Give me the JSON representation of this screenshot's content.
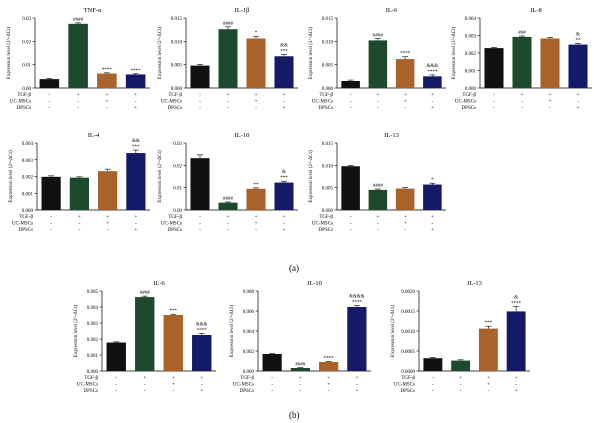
{
  "figure": {
    "panel_a_label": "(a)",
    "panel_b_label": "(b)"
  },
  "colors": {
    "black": "#111111",
    "green": "#1d4a2c",
    "orange": "#a9622a",
    "navy": "#141a66"
  },
  "row_labels": [
    "TGF-β",
    "UC-MSCs",
    "DPSCs"
  ],
  "ylabel": "Expression level (2^-ΔCt)",
  "chart_data": [
    {
      "id": "a1",
      "title": "TNF-α",
      "type": "bar",
      "ylim": [
        0,
        0.03
      ],
      "ticks": [
        "0.00",
        "0.01",
        "0.02",
        "0.03"
      ],
      "values": [
        0.0038,
        0.0275,
        0.0062,
        0.0058
      ],
      "errors": [
        0.0003,
        0.0004,
        0.0003,
        0.0003
      ],
      "sig": [
        [],
        [
          "####"
        ],
        [
          "****"
        ],
        [
          "****"
        ]
      ],
      "signs": [
        [
          "-",
          "+",
          "+",
          "+"
        ],
        [
          "-",
          "-",
          "+",
          "-"
        ],
        [
          "-",
          "-",
          "-",
          "+"
        ]
      ]
    },
    {
      "id": "a2",
      "title": "IL-1β",
      "type": "bar",
      "ylim": [
        0,
        0.015
      ],
      "ticks": [
        "0.000",
        "0.005",
        "0.010",
        "0.015"
      ],
      "values": [
        0.0048,
        0.0126,
        0.0106,
        0.0068
      ],
      "errors": [
        0.0002,
        0.0005,
        0.0005,
        0.0004
      ],
      "sig": [
        [],
        [
          "####"
        ],
        [
          "*"
        ],
        [
          "&&",
          "***"
        ]
      ],
      "signs": [
        [
          "-",
          "+",
          "+",
          "+"
        ],
        [
          "-",
          "-",
          "+",
          "-"
        ],
        [
          "-",
          "-",
          "-",
          "+"
        ]
      ]
    },
    {
      "id": "a3",
      "title": "IL-6",
      "type": "bar",
      "ylim": [
        0,
        0.015
      ],
      "ticks": [
        "0.000",
        "0.005",
        "0.010",
        "0.015"
      ],
      "values": [
        0.0015,
        0.0102,
        0.0062,
        0.0025
      ],
      "errors": [
        0.0002,
        0.0004,
        0.0005,
        0.0003
      ],
      "sig": [
        [],
        [
          "####"
        ],
        [
          "****"
        ],
        [
          "&&&",
          "****"
        ]
      ],
      "signs": [
        [
          "-",
          "+",
          "+",
          "+"
        ],
        [
          "-",
          "-",
          "+",
          "-"
        ],
        [
          "-",
          "-",
          "-",
          "+"
        ]
      ]
    },
    {
      "id": "a4",
      "title": "IL-8",
      "type": "bar",
      "ylim": [
        0,
        0.004
      ],
      "ticks": [
        "0.000",
        "0.001",
        "0.002",
        "0.003",
        "0.004"
      ],
      "values": [
        0.00228,
        0.00292,
        0.00283,
        0.00248
      ],
      "errors": [
        4e-05,
        5e-05,
        5e-05,
        6e-05
      ],
      "sig": [
        [],
        [
          "###"
        ],
        [],
        [
          "&",
          "**"
        ]
      ],
      "signs": [
        [
          "-",
          "+",
          "+",
          "+"
        ],
        [
          "-",
          "-",
          "+",
          "-"
        ],
        [
          "-",
          "-",
          "-",
          "+"
        ]
      ]
    },
    {
      "id": "a5",
      "title": "IL-4",
      "type": "bar",
      "ylim": [
        0,
        0.004
      ],
      "ticks": [
        "0.000",
        "0.001",
        "0.002",
        "0.003",
        "0.004"
      ],
      "values": [
        0.00198,
        0.00193,
        0.00232,
        0.0034
      ],
      "errors": [
        6e-05,
        5e-05,
        0.00012,
        0.00018
      ],
      "sig": [
        [],
        [],
        [],
        [
          "&&",
          "***"
        ]
      ],
      "signs": [
        [
          "-",
          "+",
          "+",
          "+"
        ],
        [
          "-",
          "-",
          "+",
          "-"
        ],
        [
          "-",
          "-",
          "-",
          "+"
        ]
      ]
    },
    {
      "id": "a6",
      "title": "IL-10",
      "type": "bar",
      "ylim": [
        0,
        0.03
      ],
      "ticks": [
        "0.00",
        "0.01",
        "0.02",
        "0.03"
      ],
      "values": [
        0.0232,
        0.0033,
        0.0095,
        0.0123
      ],
      "errors": [
        0.0015,
        0.0003,
        0.0004,
        0.0006
      ],
      "sig": [
        [],
        [
          "####"
        ],
        [
          "**"
        ],
        [
          "&",
          "***"
        ]
      ],
      "signs": [
        [
          "-",
          "+",
          "+",
          "+"
        ],
        [
          "-",
          "-",
          "+",
          "-"
        ],
        [
          "-",
          "-",
          "-",
          "+"
        ]
      ]
    },
    {
      "id": "a7",
      "title": "IL-13",
      "type": "bar",
      "ylim": [
        0,
        0.015
      ],
      "ticks": [
        "0.000",
        "0.005",
        "0.010",
        "0.015"
      ],
      "values": [
        0.0098,
        0.0045,
        0.0048,
        0.0057
      ],
      "errors": [
        0.0002,
        0.0002,
        0.0002,
        0.0003
      ],
      "sig": [
        [],
        [
          "####"
        ],
        [],
        [
          "*"
        ]
      ],
      "signs": [
        [
          "-",
          "+",
          "+",
          "+"
        ],
        [
          "-",
          "-",
          "+",
          "-"
        ],
        [
          "-",
          "-",
          "-",
          "+"
        ]
      ]
    },
    {
      "id": "b1",
      "title": "IL-6",
      "type": "bar",
      "ylim": [
        0,
        0.005
      ],
      "ticks": [
        "0.000",
        "0.001",
        "0.002",
        "0.003",
        "0.004",
        "0.005"
      ],
      "values": [
        0.00178,
        0.00462,
        0.0035,
        0.00225
      ],
      "errors": [
        4e-05,
        6e-05,
        5e-05,
        0.0001
      ],
      "sig": [
        [],
        [
          "####"
        ],
        [
          "***"
        ],
        [
          "&&&",
          "****"
        ]
      ],
      "signs": [
        [
          "-",
          "+",
          "+",
          "+"
        ],
        [
          "-",
          "-",
          "+",
          "-"
        ],
        [
          "-",
          "-",
          "-",
          "+"
        ]
      ]
    },
    {
      "id": "b2",
      "title": "IL-10",
      "type": "bar",
      "ylim": [
        0,
        0.008
      ],
      "ticks": [
        "0.000",
        "0.002",
        "0.004",
        "0.006",
        "0.008"
      ],
      "values": [
        0.0017,
        0.0003,
        0.0009,
        0.0064
      ],
      "errors": [
        4e-05,
        3e-05,
        5e-05,
        0.00015
      ],
      "sig": [
        [],
        [
          "####"
        ],
        [
          "****"
        ],
        [
          "&&&&",
          "****"
        ]
      ],
      "signs": [
        [
          "-",
          "+",
          "+",
          "+"
        ],
        [
          "-",
          "-",
          "+",
          "-"
        ],
        [
          "-",
          "-",
          "-",
          "+"
        ]
      ]
    },
    {
      "id": "b3",
      "title": "IL-13",
      "type": "bar",
      "ylim": [
        0,
        0.002
      ],
      "ticks": [
        "0.0000",
        "0.0005",
        "0.0010",
        "0.0015",
        "0.0020"
      ],
      "values": [
        0.00032,
        0.00026,
        0.00106,
        0.00149
      ],
      "errors": [
        2e-05,
        2e-05,
        6e-05,
        0.00012
      ],
      "sig": [
        [],
        [],
        [
          "***"
        ],
        [
          "&",
          "****"
        ]
      ],
      "signs": [
        [
          "-",
          "+",
          "+",
          "+"
        ],
        [
          "-",
          "-",
          "+",
          "-"
        ],
        [
          "-",
          "-",
          "-",
          "+"
        ]
      ]
    }
  ]
}
